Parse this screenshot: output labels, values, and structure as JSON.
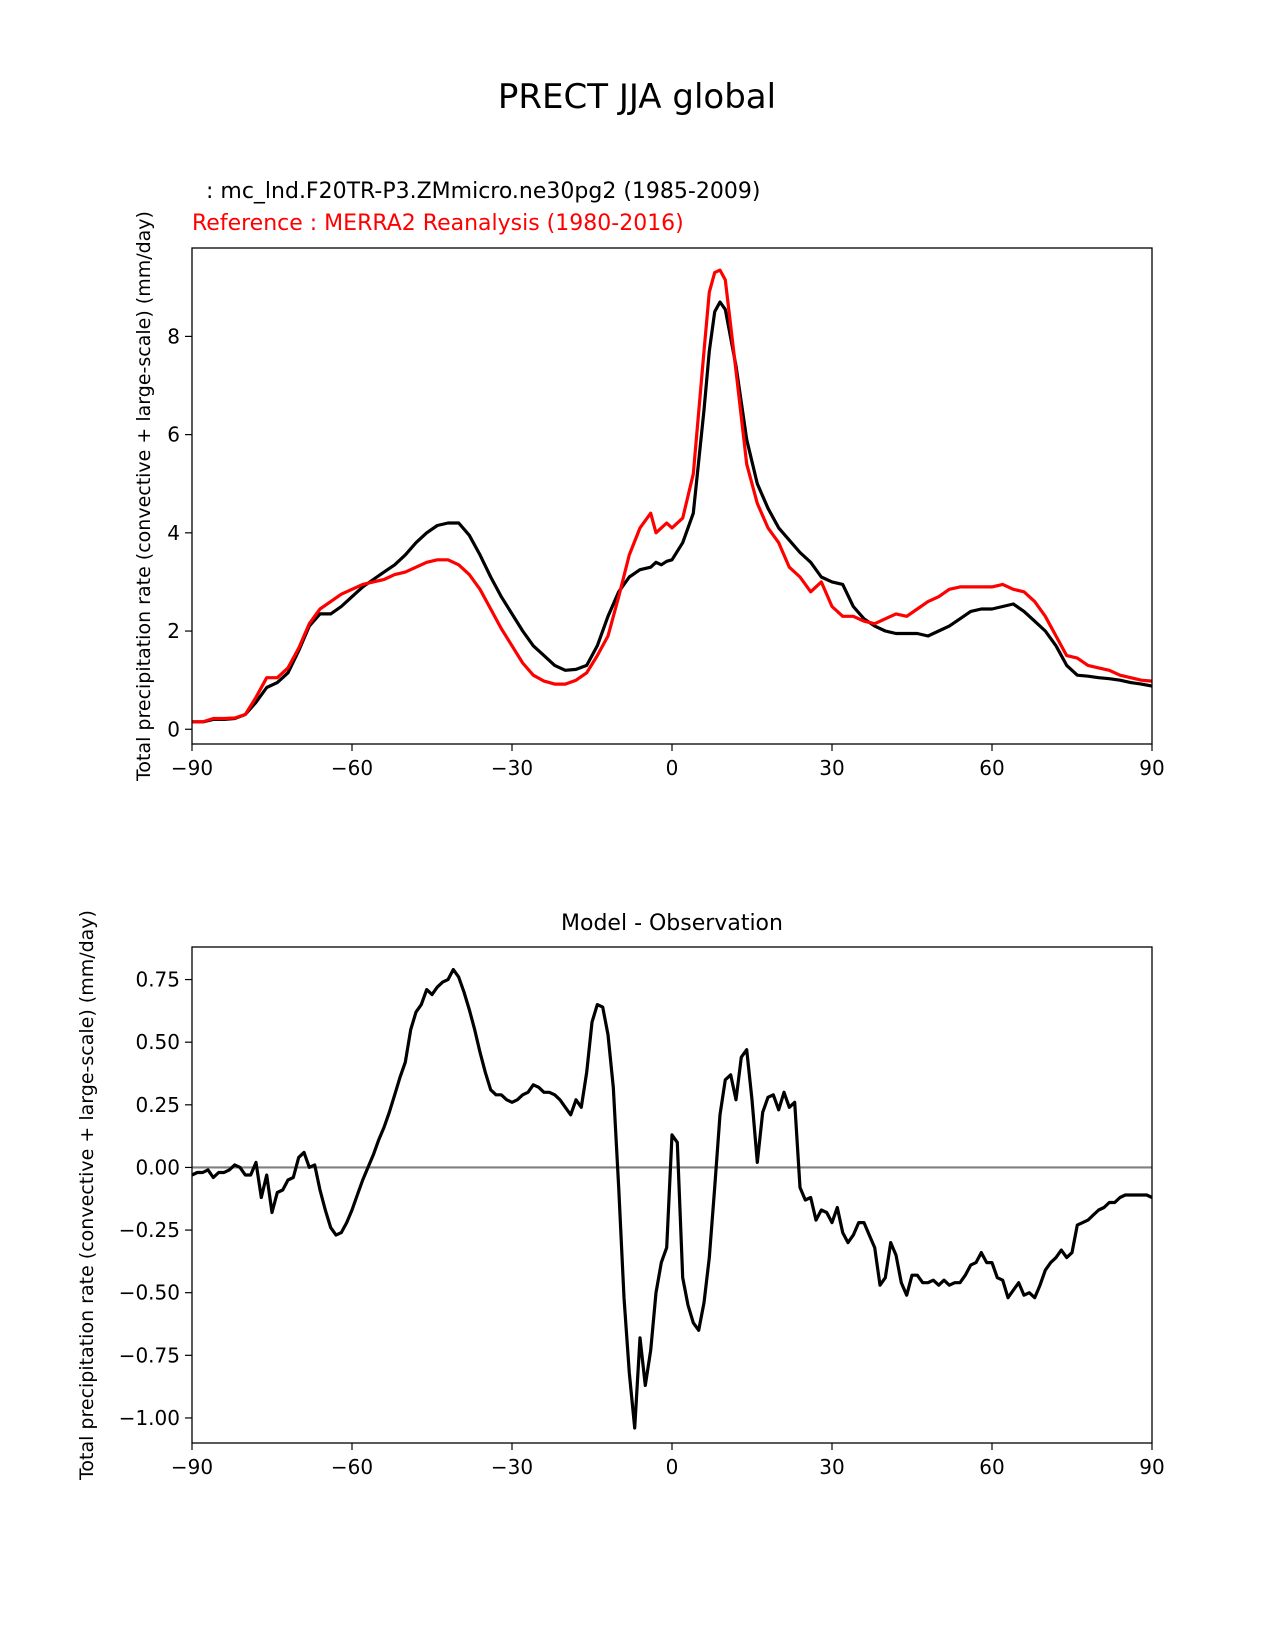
{
  "suptitle": "PRECT JJA global",
  "colors": {
    "test": "#000000",
    "reference": "#ff0000",
    "zero_line": "#808080"
  },
  "chart_data": [
    {
      "type": "line",
      "title_test": "  : mc_lnd.F20TR-P3.ZMmicro.ne30pg2 (1985-2009)",
      "title_reference": "Reference : MERRA2 Reanalysis (1980-2016)",
      "xlabel": "",
      "ylabel": "Total precipitation rate (convective + large-scale) (mm/day)",
      "xlim": [
        -90,
        90
      ],
      "ylim": [
        -0.3,
        9.8
      ],
      "xticks": [
        -90,
        -60,
        -30,
        0,
        30,
        60,
        90
      ],
      "xtick_labels": [
        "−90",
        "−60",
        "−30",
        "0",
        "30",
        "60",
        "90"
      ],
      "yticks": [
        0,
        2,
        4,
        6,
        8
      ],
      "ytick_labels": [
        "0",
        "2",
        "4",
        "6",
        "8"
      ],
      "series": [
        {
          "name": "test",
          "x": [
            -90,
            -88,
            -86,
            -84,
            -82,
            -80,
            -78,
            -76,
            -74,
            -72,
            -70,
            -68,
            -66,
            -64,
            -62,
            -60,
            -58,
            -56,
            -54,
            -52,
            -50,
            -48,
            -46,
            -44,
            -42,
            -40,
            -38,
            -36,
            -34,
            -32,
            -30,
            -28,
            -26,
            -24,
            -22,
            -20,
            -18,
            -16,
            -14,
            -12,
            -10,
            -8,
            -6,
            -4,
            -3,
            -2,
            -1,
            0,
            2,
            4,
            6,
            7,
            8,
            9,
            10,
            12,
            14,
            16,
            18,
            20,
            22,
            24,
            26,
            28,
            30,
            32,
            34,
            36,
            38,
            40,
            42,
            44,
            46,
            48,
            50,
            52,
            54,
            56,
            58,
            60,
            62,
            64,
            66,
            68,
            70,
            72,
            74,
            76,
            78,
            80,
            82,
            84,
            86,
            88,
            90
          ],
          "values": [
            0.15,
            0.15,
            0.2,
            0.2,
            0.22,
            0.3,
            0.55,
            0.85,
            0.95,
            1.15,
            1.6,
            2.1,
            2.35,
            2.35,
            2.5,
            2.7,
            2.9,
            3.05,
            3.2,
            3.35,
            3.55,
            3.8,
            4.0,
            4.15,
            4.2,
            4.2,
            3.95,
            3.55,
            3.1,
            2.7,
            2.35,
            2.0,
            1.7,
            1.5,
            1.3,
            1.2,
            1.22,
            1.3,
            1.7,
            2.3,
            2.8,
            3.1,
            3.25,
            3.3,
            3.4,
            3.35,
            3.42,
            3.45,
            3.8,
            4.4,
            6.5,
            7.7,
            8.5,
            8.7,
            8.55,
            7.4,
            5.9,
            5.0,
            4.5,
            4.1,
            3.85,
            3.6,
            3.4,
            3.1,
            3.0,
            2.95,
            2.5,
            2.25,
            2.1,
            2.0,
            1.95,
            1.95,
            1.95,
            1.9,
            2.0,
            2.1,
            2.25,
            2.4,
            2.45,
            2.45,
            2.5,
            2.55,
            2.4,
            2.2,
            2.0,
            1.7,
            1.3,
            1.1,
            1.08,
            1.05,
            1.03,
            1.0,
            0.95,
            0.92,
            0.88
          ]
        },
        {
          "name": "reference",
          "x": [
            -90,
            -88,
            -86,
            -84,
            -82,
            -80,
            -78,
            -76,
            -74,
            -72,
            -70,
            -68,
            -66,
            -64,
            -62,
            -60,
            -58,
            -56,
            -54,
            -52,
            -50,
            -48,
            -46,
            -44,
            -42,
            -40,
            -38,
            -36,
            -34,
            -32,
            -30,
            -28,
            -26,
            -24,
            -22,
            -20,
            -18,
            -16,
            -14,
            -12,
            -10,
            -8,
            -6,
            -4,
            -3,
            -2,
            -1,
            0,
            2,
            4,
            6,
            7,
            8,
            9,
            10,
            12,
            14,
            16,
            18,
            20,
            22,
            24,
            26,
            28,
            30,
            32,
            34,
            36,
            38,
            40,
            42,
            44,
            46,
            48,
            50,
            52,
            54,
            56,
            58,
            60,
            62,
            64,
            66,
            68,
            70,
            72,
            74,
            76,
            78,
            80,
            82,
            84,
            86,
            88,
            90
          ],
          "values": [
            0.15,
            0.15,
            0.22,
            0.22,
            0.23,
            0.3,
            0.65,
            1.05,
            1.05,
            1.25,
            1.65,
            2.15,
            2.45,
            2.6,
            2.75,
            2.85,
            2.95,
            3.0,
            3.05,
            3.15,
            3.2,
            3.3,
            3.4,
            3.45,
            3.45,
            3.35,
            3.15,
            2.85,
            2.45,
            2.05,
            1.7,
            1.35,
            1.1,
            0.98,
            0.92,
            0.92,
            1.0,
            1.15,
            1.5,
            1.9,
            2.7,
            3.55,
            4.1,
            4.4,
            4.0,
            4.1,
            4.2,
            4.1,
            4.3,
            5.2,
            7.7,
            8.9,
            9.3,
            9.35,
            9.15,
            7.3,
            5.4,
            4.6,
            4.1,
            3.8,
            3.3,
            3.1,
            2.8,
            3.0,
            2.5,
            2.3,
            2.3,
            2.2,
            2.15,
            2.25,
            2.35,
            2.3,
            2.45,
            2.6,
            2.7,
            2.85,
            2.9,
            2.9,
            2.9,
            2.9,
            2.95,
            2.85,
            2.8,
            2.6,
            2.3,
            1.9,
            1.5,
            1.45,
            1.3,
            1.25,
            1.2,
            1.1,
            1.05,
            1.0,
            0.98
          ]
        }
      ]
    },
    {
      "type": "line",
      "title": "Model - Observation",
      "xlabel": "",
      "ylabel": "Total precipitation rate (convective + large-scale) (mm/day)",
      "xlim": [
        -90,
        90
      ],
      "ylim": [
        -1.1,
        0.88
      ],
      "xticks": [
        -90,
        -60,
        -30,
        0,
        30,
        60,
        90
      ],
      "xtick_labels": [
        "−90",
        "−60",
        "−30",
        "0",
        "30",
        "60",
        "90"
      ],
      "yticks": [
        0.75,
        0.5,
        0.25,
        0.0,
        -0.25,
        -0.5,
        -0.75,
        -1.0
      ],
      "ytick_labels": [
        "0.75",
        "0.50",
        "0.25",
        "0.00",
        "−0.25",
        "−0.50",
        "−0.75",
        "−1.00"
      ],
      "zero_line": 0,
      "series": [
        {
          "name": "difference",
          "x": [
            -90,
            -89,
            -88,
            -87,
            -86,
            -85,
            -84,
            -83,
            -82,
            -81,
            -80,
            -79,
            -78,
            -77,
            -76,
            -75,
            -74,
            -73,
            -72,
            -71,
            -70,
            -69,
            -68,
            -67,
            -66,
            -65,
            -64,
            -63,
            -62,
            -61,
            -60,
            -59,
            -58,
            -57,
            -56,
            -55,
            -54,
            -53,
            -52,
            -51,
            -50,
            -49,
            -48,
            -47,
            -46,
            -45,
            -44,
            -43,
            -42,
            -41,
            -40,
            -39,
            -38,
            -37,
            -36,
            -35,
            -34,
            -33,
            -32,
            -31,
            -30,
            -29,
            -28,
            -27,
            -26,
            -25,
            -24,
            -23,
            -22,
            -21,
            -20,
            -19,
            -18,
            -17,
            -16,
            -15,
            -14,
            -13,
            -12,
            -11,
            -10,
            -9,
            -8,
            -7,
            -6,
            -5,
            -4,
            -3,
            -2,
            -1,
            0,
            1,
            2,
            3,
            4,
            5,
            6,
            7,
            8,
            9,
            10,
            11,
            12,
            13,
            14,
            15,
            16,
            17,
            18,
            19,
            20,
            21,
            22,
            23,
            24,
            25,
            26,
            27,
            28,
            29,
            30,
            31,
            32,
            33,
            34,
            35,
            36,
            37,
            38,
            39,
            40,
            41,
            42,
            43,
            44,
            45,
            46,
            47,
            48,
            49,
            50,
            51,
            52,
            53,
            54,
            55,
            56,
            57,
            58,
            59,
            60,
            61,
            62,
            63,
            64,
            65,
            66,
            67,
            68,
            69,
            70,
            71,
            72,
            73,
            74,
            75,
            76,
            77,
            78,
            79,
            80,
            81,
            82,
            83,
            84,
            85,
            86,
            87,
            88,
            89,
            90
          ],
          "values": [
            -0.03,
            -0.02,
            -0.02,
            -0.01,
            -0.04,
            -0.02,
            -0.02,
            -0.01,
            0.01,
            0.0,
            -0.03,
            -0.03,
            0.02,
            -0.12,
            -0.03,
            -0.18,
            -0.1,
            -0.09,
            -0.05,
            -0.04,
            0.04,
            0.06,
            0.0,
            0.01,
            -0.09,
            -0.17,
            -0.24,
            -0.27,
            -0.26,
            -0.22,
            -0.17,
            -0.11,
            -0.05,
            0.0,
            0.05,
            0.11,
            0.16,
            0.22,
            0.29,
            0.36,
            0.42,
            0.55,
            0.62,
            0.65,
            0.71,
            0.69,
            0.72,
            0.74,
            0.75,
            0.79,
            0.76,
            0.7,
            0.63,
            0.55,
            0.46,
            0.38,
            0.31,
            0.29,
            0.29,
            0.27,
            0.26,
            0.27,
            0.29,
            0.3,
            0.33,
            0.32,
            0.3,
            0.3,
            0.29,
            0.27,
            0.24,
            0.21,
            0.27,
            0.24,
            0.38,
            0.58,
            0.65,
            0.64,
            0.53,
            0.32,
            -0.08,
            -0.52,
            -0.82,
            -1.04,
            -0.68,
            -0.87,
            -0.73,
            -0.5,
            -0.38,
            -0.32,
            0.13,
            0.1,
            -0.44,
            -0.55,
            -0.62,
            -0.65,
            -0.54,
            -0.36,
            -0.08,
            0.21,
            0.35,
            0.37,
            0.27,
            0.44,
            0.47,
            0.27,
            0.02,
            0.22,
            0.28,
            0.29,
            0.23,
            0.3,
            0.24,
            0.26,
            -0.08,
            -0.13,
            -0.12,
            -0.21,
            -0.17,
            -0.18,
            -0.22,
            -0.16,
            -0.26,
            -0.3,
            -0.27,
            -0.22,
            -0.22,
            -0.27,
            -0.32,
            -0.47,
            -0.44,
            -0.3,
            -0.35,
            -0.46,
            -0.51,
            -0.43,
            -0.43,
            -0.46,
            -0.46,
            -0.45,
            -0.47,
            -0.45,
            -0.47,
            -0.46,
            -0.46,
            -0.43,
            -0.39,
            -0.38,
            -0.34,
            -0.38,
            -0.38,
            -0.44,
            -0.45,
            -0.52,
            -0.49,
            -0.46,
            -0.51,
            -0.5,
            -0.52,
            -0.47,
            -0.41,
            -0.38,
            -0.36,
            -0.33,
            -0.36,
            -0.34,
            -0.23,
            -0.22,
            -0.21,
            -0.19,
            -0.17,
            -0.16,
            -0.14,
            -0.14,
            -0.12,
            -0.11,
            -0.11,
            -0.11,
            -0.11,
            -0.11,
            -0.12
          ]
        }
      ]
    }
  ]
}
